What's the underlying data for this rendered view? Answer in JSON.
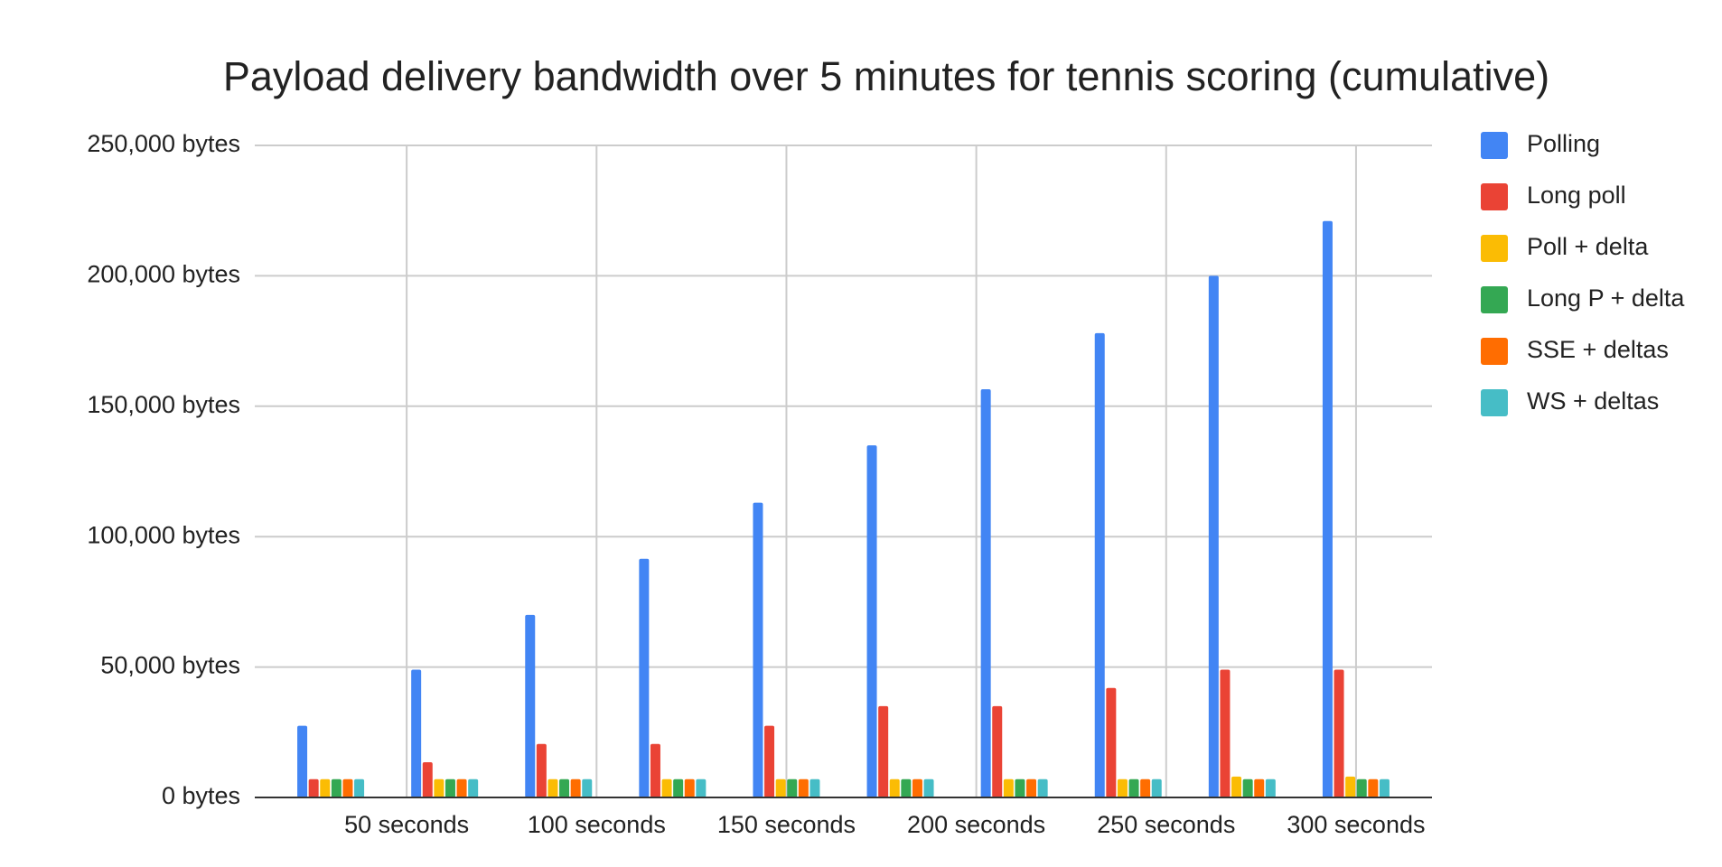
{
  "chart_data": {
    "type": "bar",
    "title": "Payload delivery bandwidth over 5 minutes for tennis scoring (cumulative)",
    "x": [
      30,
      60,
      90,
      120,
      150,
      180,
      210,
      240,
      270,
      300
    ],
    "xlim": [
      10,
      320
    ],
    "xticks": [
      {
        "value": 50,
        "label": "50 seconds"
      },
      {
        "value": 100,
        "label": "100 seconds"
      },
      {
        "value": 150,
        "label": "150 seconds"
      },
      {
        "value": 200,
        "label": "200 seconds"
      },
      {
        "value": 250,
        "label": "250 seconds"
      },
      {
        "value": 300,
        "label": "300 seconds"
      }
    ],
    "ylim": [
      0,
      250000
    ],
    "yticks": [
      {
        "value": 0,
        "label": "0 bytes"
      },
      {
        "value": 50000,
        "label": "50,000 bytes"
      },
      {
        "value": 100000,
        "label": "100,000 bytes"
      },
      {
        "value": 150000,
        "label": "150,000 bytes"
      },
      {
        "value": 200000,
        "label": "200,000 bytes"
      },
      {
        "value": 250000,
        "label": "250,000 bytes"
      }
    ],
    "grid": true,
    "legend": "right",
    "series": [
      {
        "name": "Polling",
        "color": "#4285f4",
        "values": [
          27500,
          49000,
          70000,
          91500,
          113000,
          135000,
          156500,
          178000,
          200000,
          221000
        ]
      },
      {
        "name": "Long poll",
        "color": "#ea4335",
        "values": [
          7000,
          13500,
          20500,
          20500,
          27500,
          35000,
          35000,
          42000,
          49000,
          49000
        ]
      },
      {
        "name": "Poll + delta",
        "color": "#fbbc04",
        "values": [
          7000,
          7000,
          7000,
          7000,
          7000,
          7000,
          7000,
          7000,
          8000,
          8000
        ]
      },
      {
        "name": "Long P + delta",
        "color": "#34a853",
        "values": [
          7000,
          7000,
          7000,
          7000,
          7000,
          7000,
          7000,
          7000,
          7000,
          7000
        ]
      },
      {
        "name": "SSE + deltas",
        "color": "#ff6d01",
        "values": [
          7000,
          7000,
          7000,
          7000,
          7000,
          7000,
          7000,
          7000,
          7000,
          7000
        ]
      },
      {
        "name": "WS + deltas",
        "color": "#46bdc6",
        "values": [
          7000,
          7000,
          7000,
          7000,
          7000,
          7000,
          7000,
          7000,
          7000,
          7000
        ]
      }
    ]
  }
}
